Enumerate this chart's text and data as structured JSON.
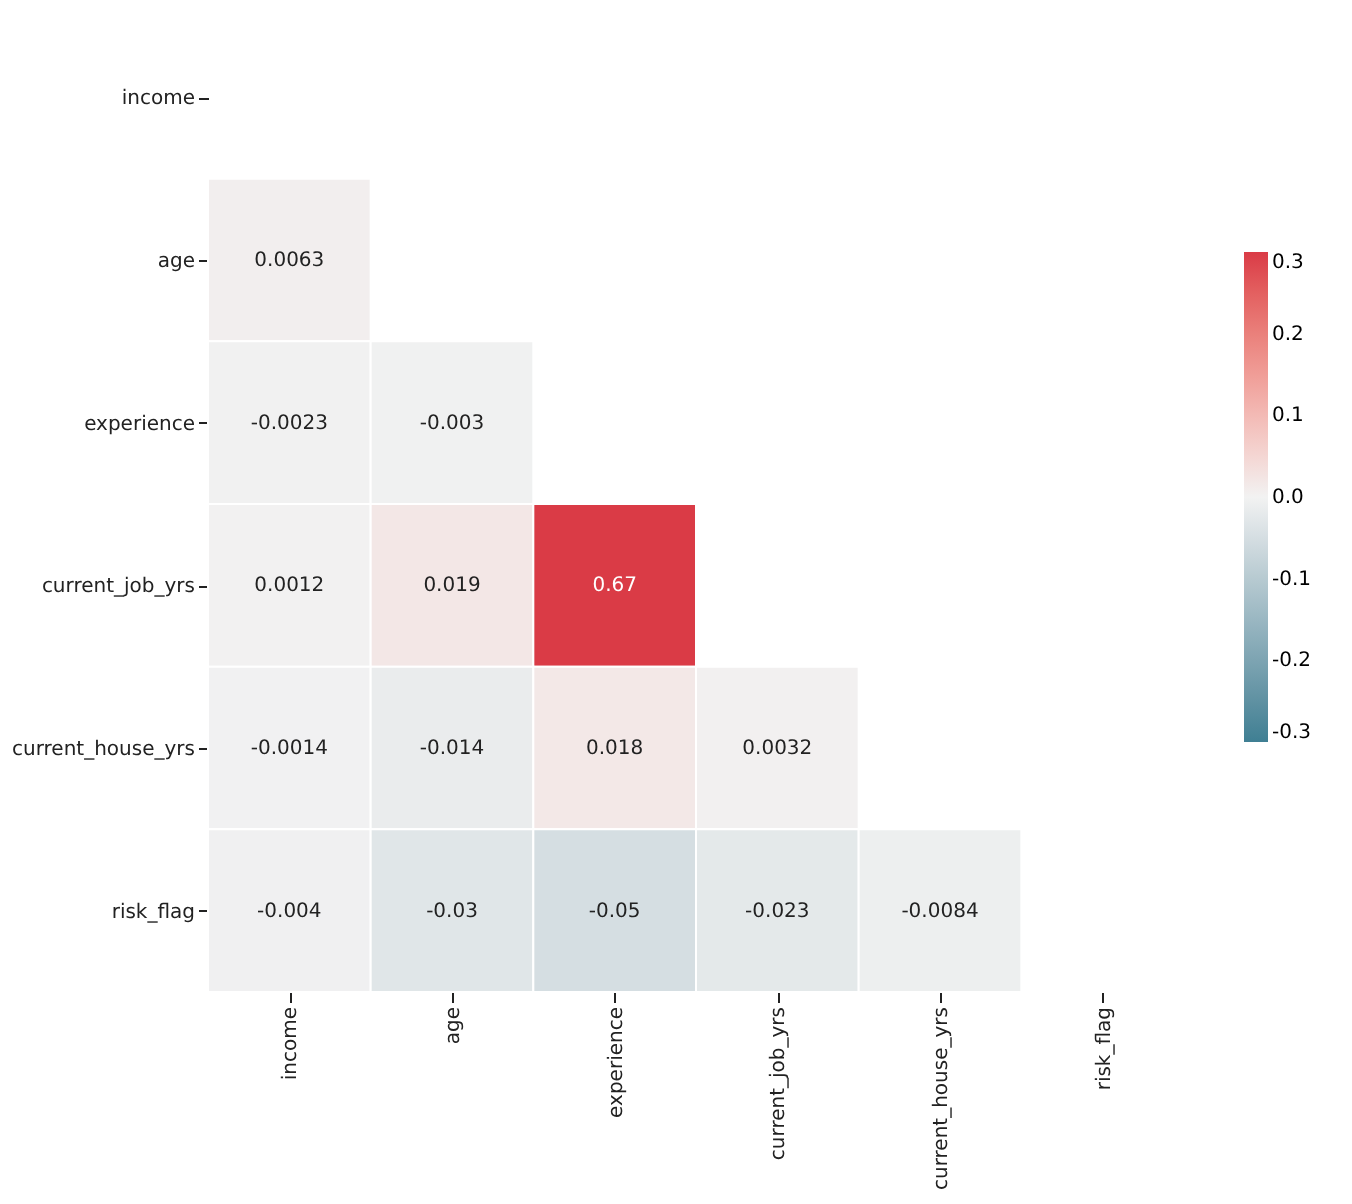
{
  "chart_data": {
    "type": "heatmap",
    "categories": [
      "income",
      "age",
      "experience",
      "current_job_yrs",
      "current_house_yrs",
      "risk_flag"
    ],
    "y_categories": [
      "income",
      "age",
      "experience",
      "current_job_yrs",
      "current_house_yrs",
      "risk_flag"
    ],
    "cells": [
      [
        null,
        null,
        null,
        null,
        null,
        null
      ],
      [
        0.0063,
        null,
        null,
        null,
        null,
        null
      ],
      [
        -0.0023,
        -0.003,
        null,
        null,
        null,
        null
      ],
      [
        0.0012,
        0.019,
        0.67,
        null,
        null,
        null
      ],
      [
        -0.0014,
        -0.014,
        0.018,
        0.0032,
        null,
        null
      ],
      [
        -0.004,
        -0.03,
        -0.05,
        -0.023,
        -0.0084,
        null
      ]
    ],
    "clim": [
      -0.3,
      0.3
    ],
    "cticks": [
      -0.3,
      -0.2,
      -0.1,
      {
        "value": 0,
        "label": "0.0"
      },
      0.1,
      0.2,
      0.3
    ],
    "colors": [
      "#3f7f93",
      "#f2f2f2",
      "#da3b46"
    ],
    "data_labels": true,
    "grid": false
  }
}
